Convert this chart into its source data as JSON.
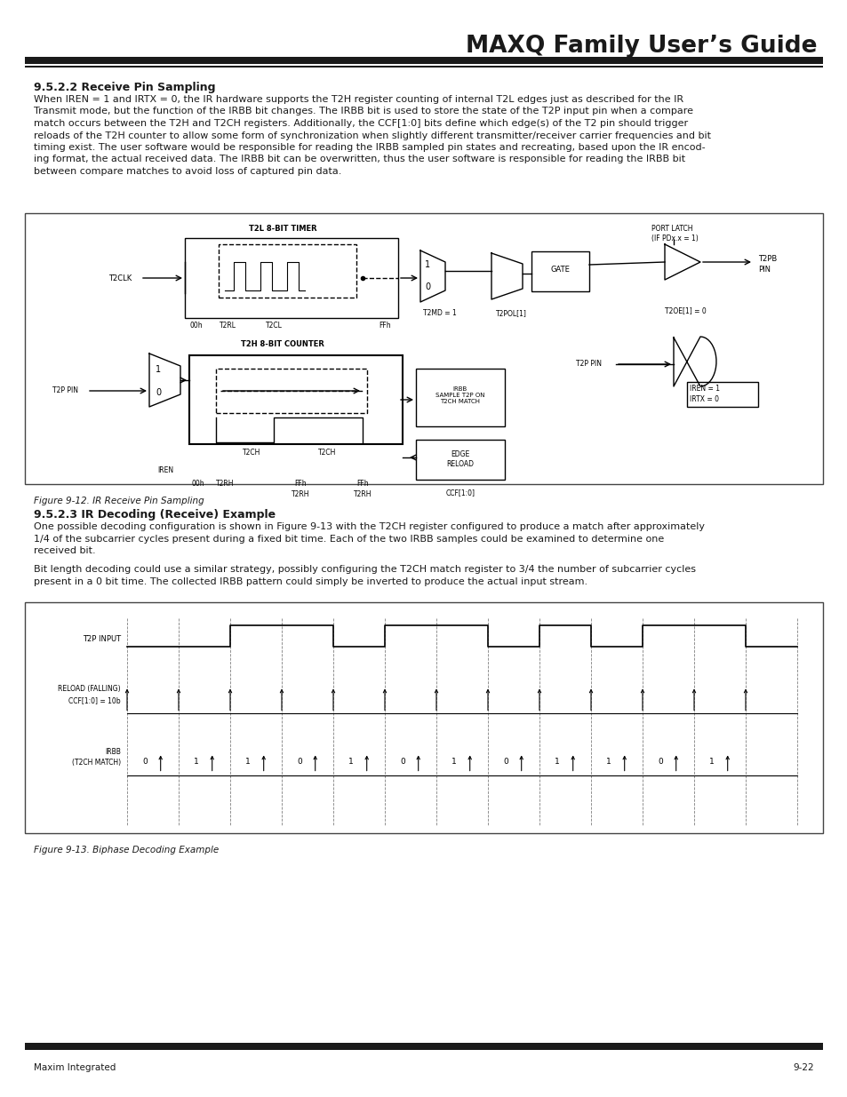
{
  "title": "MAXQ Family User’s Guide",
  "footer_left": "Maxim Integrated",
  "footer_right": "9-22",
  "section_title_1": "9.5.2.2 Receive Pin Sampling",
  "body_text_1_lines": [
    "When IREN = 1 and IRTX = 0, the IR hardware supports the T2H register counting of internal T2L edges just as described for the IR",
    "Transmit mode, but the function of the IRBB bit changes. The IRBB bit is used to store the state of the T2P input pin when a compare",
    "match occurs between the T2H and T2CH registers. Additionally, the CCF[1:0] bits define which edge(s) of the T2 pin should trigger",
    "reloads of the T2H counter to allow some form of synchronization when slightly different transmitter/receiver carrier frequencies and bit",
    "timing exist. The user software would be responsible for reading the IRBB sampled pin states and recreating, based upon the IR encod-",
    "ing format, the actual received data. The IRBB bit can be overwritten, thus the user software is responsible for reading the IRBB bit",
    "between compare matches to avoid loss of captured pin data."
  ],
  "fig1_caption": "Figure 9-12. IR Receive Pin Sampling",
  "section_title_2": "9.5.2.3 IR Decoding (Receive) Example",
  "body_text_2_lines": [
    "One possible decoding configuration is shown in Figure 9-13 with the T2CH register configured to produce a match after approximately",
    "1/4 of the subcarrier cycles present during a fixed bit time. Each of the two IRBB samples could be examined to determine one",
    "received bit."
  ],
  "body_text_3_lines": [
    "Bit length decoding could use a similar strategy, possibly configuring the T2CH match register to 3/4 the number of subcarrier cycles",
    "present in a 0 bit time. The collected IRBB pattern could simply be inverted to produce the actual input stream."
  ],
  "fig2_caption": "Figure 9-13. Biphase Decoding Example",
  "bg_color": "#ffffff",
  "text_color": "#1a1a1a",
  "bar_color": "#1a1a1a",
  "fig_border_color": "#555555",
  "title_fontsize": 19,
  "section_fontsize": 9,
  "body_fontsize": 8,
  "caption_fontsize": 7.5,
  "footer_fontsize": 7.5
}
